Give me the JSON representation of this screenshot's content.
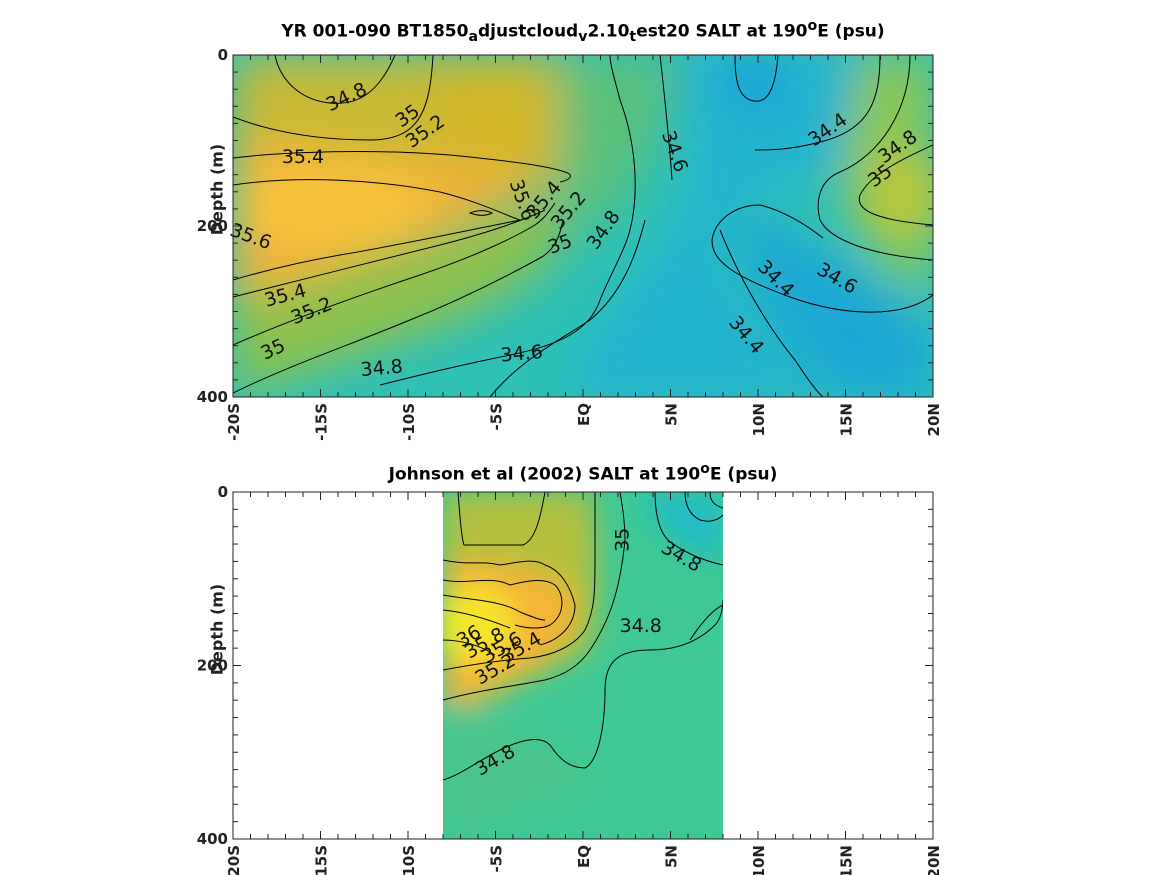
{
  "chart_data": [
    {
      "type": "heatmap",
      "title_parts": [
        "YR 001-090 BT1850",
        "a",
        "djustcloud",
        "v",
        "2.10",
        "t",
        "est20 SALT at 190",
        "o",
        "E (psu)"
      ],
      "ylabel": "Depth (m)",
      "variable": "SALT",
      "units": "psu",
      "xlim": [
        -20,
        20
      ],
      "ylim": [
        0,
        400
      ],
      "y_reversed": true,
      "xticks": [
        -20,
        -15,
        -10,
        -5,
        0,
        5,
        10,
        15,
        20
      ],
      "xtick_labels": [
        "-20S",
        "-15S",
        "-10S",
        "-5S",
        "EQ",
        "5N",
        "10N",
        "15N",
        "20N"
      ],
      "yticks": [
        0,
        200,
        400
      ],
      "ytick_labels": [
        "0",
        "200",
        "400"
      ],
      "data_extent_x": [
        -20,
        20
      ],
      "contour_labels": [
        {
          "text": "34.8",
          "x": -13.5,
          "y": 50,
          "angle": -25
        },
        {
          "text": "35",
          "x": -10.0,
          "y": 72,
          "angle": -35
        },
        {
          "text": "35.2",
          "x": -9.0,
          "y": 90,
          "angle": -35
        },
        {
          "text": "35.4",
          "x": -16.0,
          "y": 120,
          "angle": 0
        },
        {
          "text": "35.6",
          "x": -19.0,
          "y": 213,
          "angle": 20
        },
        {
          "text": "35.6",
          "x": -3.5,
          "y": 170,
          "angle": 70
        },
        {
          "text": "35.4",
          "x": -2.2,
          "y": 170,
          "angle": -50
        },
        {
          "text": "35.2",
          "x": -0.8,
          "y": 182,
          "angle": -50
        },
        {
          "text": "35",
          "x": -1.3,
          "y": 222,
          "angle": -20
        },
        {
          "text": "34.8",
          "x": 1.2,
          "y": 205,
          "angle": -55
        },
        {
          "text": "34.6",
          "x": 5.2,
          "y": 113,
          "angle": 70
        },
        {
          "text": "34.4",
          "x": 14.0,
          "y": 88,
          "angle": -35
        },
        {
          "text": "34.8",
          "x": 18.0,
          "y": 108,
          "angle": -35
        },
        {
          "text": "35",
          "x": 17.0,
          "y": 142,
          "angle": -35
        },
        {
          "text": "34.4",
          "x": 11.0,
          "y": 262,
          "angle": 45
        },
        {
          "text": "34.6",
          "x": 14.5,
          "y": 262,
          "angle": 30
        },
        {
          "text": "34.4",
          "x": 9.3,
          "y": 328,
          "angle": 50
        },
        {
          "text": "35.4",
          "x": -17.0,
          "y": 282,
          "angle": -15
        },
        {
          "text": "35.2",
          "x": -15.5,
          "y": 300,
          "angle": -22
        },
        {
          "text": "35",
          "x": -17.7,
          "y": 345,
          "angle": -25
        },
        {
          "text": "34.8",
          "x": -11.5,
          "y": 367,
          "angle": -5
        },
        {
          "text": "34.6",
          "x": -3.5,
          "y": 350,
          "angle": -5
        }
      ],
      "color_regions": [
        {
          "label": "high salinity core",
          "x_range": [
            -20,
            -3
          ],
          "depth_range": [
            120,
            280
          ],
          "max_value": 35.6
        },
        {
          "label": "low salinity",
          "x_range": [
            5,
            20
          ],
          "depth_range": [
            0,
            400
          ],
          "min_value": 34.4
        }
      ]
    },
    {
      "type": "heatmap",
      "title_parts": [
        "Johnson et al (2002) SALT at 190",
        "o",
        "E (psu)"
      ],
      "ylabel": "Depth (m)",
      "variable": "SALT",
      "units": "psu",
      "xlim": [
        -20,
        20
      ],
      "ylim": [
        0,
        400
      ],
      "y_reversed": true,
      "xticks": [
        -20,
        -15,
        -10,
        -5,
        0,
        5,
        10,
        15,
        20
      ],
      "xtick_labels": [
        "-20S",
        "-15S",
        "-10S",
        "-5S",
        "EQ",
        "5N",
        "10N",
        "15N",
        "20N"
      ],
      "yticks": [
        0,
        200,
        400
      ],
      "ytick_labels": [
        "0",
        "200",
        "400"
      ],
      "data_extent_x": [
        -8,
        8
      ],
      "contour_labels": [
        {
          "text": "35",
          "x": 2.3,
          "y": 55,
          "angle": -90
        },
        {
          "text": "34.8",
          "x": 5.6,
          "y": 75,
          "angle": 30
        },
        {
          "text": "34.8",
          "x": 3.3,
          "y": 155,
          "angle": 0
        },
        {
          "text": "36",
          "x": -6.5,
          "y": 167,
          "angle": -30
        },
        {
          "text": "35.8",
          "x": -5.6,
          "y": 175,
          "angle": -30
        },
        {
          "text": "35.6",
          "x": -4.6,
          "y": 180,
          "angle": -30
        },
        {
          "text": "35.4",
          "x": -3.5,
          "y": 180,
          "angle": -30
        },
        {
          "text": "35.2",
          "x": -5.0,
          "y": 205,
          "angle": -30
        },
        {
          "text": "34.8",
          "x": -5.0,
          "y": 310,
          "angle": -30
        }
      ],
      "color_regions": [
        {
          "label": "high salinity core",
          "x_range": [
            -8,
            -2
          ],
          "depth_range": [
            90,
            220
          ],
          "max_value": 36
        },
        {
          "label": "fresher north",
          "x_range": [
            5,
            8
          ],
          "depth_range": [
            0,
            80
          ],
          "min_value": 34.8
        }
      ]
    }
  ]
}
